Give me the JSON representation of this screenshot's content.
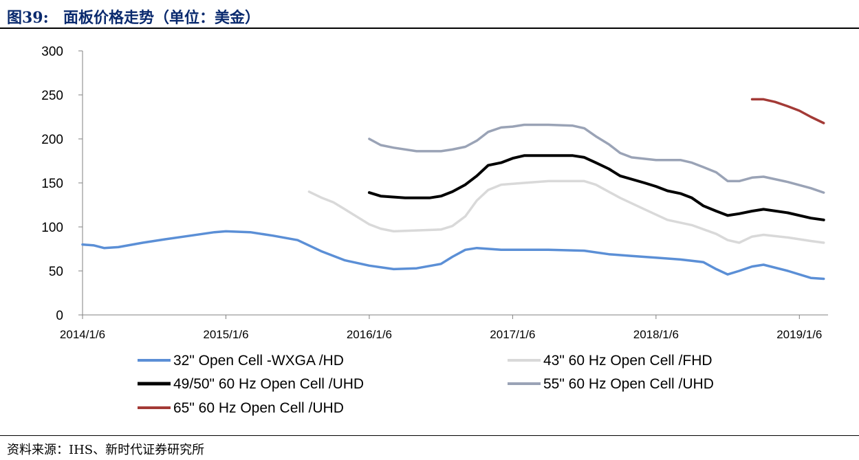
{
  "header": {
    "figure_label": "图39:",
    "title": "面板价格走势（单位：美金）"
  },
  "footer": {
    "source": "资料来源：IHS、新时代证券研究所"
  },
  "chart_data": {
    "type": "line",
    "title": "面板价格走势（单位：美金）",
    "xlabel": "",
    "ylabel": "",
    "ylim": [
      0,
      300
    ],
    "yticks": [
      0,
      50,
      100,
      150,
      200,
      250,
      300
    ],
    "xlim": [
      2014.0,
      2019.2
    ],
    "xticks": [
      {
        "x": 2014.0,
        "label": "2014/1/6"
      },
      {
        "x": 2015.0,
        "label": "2015/1/6"
      },
      {
        "x": 2016.0,
        "label": "2016/1/6"
      },
      {
        "x": 2017.0,
        "label": "2017/1/6"
      },
      {
        "x": 2018.0,
        "label": "2018/1/6"
      },
      {
        "x": 2019.0,
        "label": "2019/1/6"
      }
    ],
    "grid": false,
    "legend_position": "bottom",
    "series": [
      {
        "name": "32\" Open Cell -WXGA /HD",
        "color": "#5b8fd6",
        "points": [
          [
            2014.0,
            80
          ],
          [
            2014.08,
            79
          ],
          [
            2014.15,
            76
          ],
          [
            2014.25,
            77
          ],
          [
            2014.42,
            82
          ],
          [
            2014.58,
            86
          ],
          [
            2014.75,
            90
          ],
          [
            2014.92,
            94
          ],
          [
            2015.0,
            95
          ],
          [
            2015.17,
            94
          ],
          [
            2015.33,
            90
          ],
          [
            2015.5,
            85
          ],
          [
            2015.67,
            72
          ],
          [
            2015.83,
            62
          ],
          [
            2016.0,
            56
          ],
          [
            2016.17,
            52
          ],
          [
            2016.33,
            53
          ],
          [
            2016.5,
            58
          ],
          [
            2016.58,
            66
          ],
          [
            2016.67,
            74
          ],
          [
            2016.75,
            76
          ],
          [
            2016.92,
            74
          ],
          [
            2017.08,
            74
          ],
          [
            2017.25,
            74
          ],
          [
            2017.5,
            73
          ],
          [
            2017.67,
            69
          ],
          [
            2017.83,
            67
          ],
          [
            2018.0,
            65
          ],
          [
            2018.17,
            63
          ],
          [
            2018.33,
            60
          ],
          [
            2018.42,
            52
          ],
          [
            2018.5,
            46
          ],
          [
            2018.58,
            50
          ],
          [
            2018.67,
            55
          ],
          [
            2018.75,
            57
          ],
          [
            2018.92,
            50
          ],
          [
            2019.08,
            42
          ],
          [
            2019.17,
            41
          ]
        ]
      },
      {
        "name": "43\" 60 Hz Open Cell /FHD",
        "color": "#d9d9d9",
        "points": [
          [
            2015.58,
            140
          ],
          [
            2015.67,
            133
          ],
          [
            2015.75,
            128
          ],
          [
            2015.83,
            120
          ],
          [
            2016.0,
            103
          ],
          [
            2016.08,
            98
          ],
          [
            2016.17,
            95
          ],
          [
            2016.33,
            96
          ],
          [
            2016.5,
            97
          ],
          [
            2016.58,
            101
          ],
          [
            2016.67,
            112
          ],
          [
            2016.75,
            130
          ],
          [
            2016.83,
            142
          ],
          [
            2016.92,
            148
          ],
          [
            2017.08,
            150
          ],
          [
            2017.25,
            152
          ],
          [
            2017.5,
            152
          ],
          [
            2017.58,
            148
          ],
          [
            2017.75,
            133
          ],
          [
            2017.92,
            120
          ],
          [
            2018.08,
            108
          ],
          [
            2018.25,
            102
          ],
          [
            2018.42,
            92
          ],
          [
            2018.5,
            85
          ],
          [
            2018.58,
            82
          ],
          [
            2018.67,
            89
          ],
          [
            2018.75,
            91
          ],
          [
            2018.92,
            88
          ],
          [
            2019.08,
            84
          ],
          [
            2019.17,
            82
          ]
        ]
      },
      {
        "name": "49/50\" 60 Hz Open Cell /UHD",
        "color": "#000000",
        "points": [
          [
            2016.0,
            139
          ],
          [
            2016.08,
            135
          ],
          [
            2016.25,
            133
          ],
          [
            2016.42,
            133
          ],
          [
            2016.5,
            135
          ],
          [
            2016.58,
            140
          ],
          [
            2016.67,
            148
          ],
          [
            2016.75,
            158
          ],
          [
            2016.83,
            170
          ],
          [
            2016.92,
            173
          ],
          [
            2017.0,
            178
          ],
          [
            2017.08,
            181
          ],
          [
            2017.25,
            181
          ],
          [
            2017.42,
            181
          ],
          [
            2017.5,
            179
          ],
          [
            2017.58,
            173
          ],
          [
            2017.67,
            166
          ],
          [
            2017.75,
            158
          ],
          [
            2017.92,
            150
          ],
          [
            2018.0,
            146
          ],
          [
            2018.08,
            141
          ],
          [
            2018.17,
            138
          ],
          [
            2018.25,
            133
          ],
          [
            2018.33,
            124
          ],
          [
            2018.42,
            118
          ],
          [
            2018.5,
            113
          ],
          [
            2018.58,
            115
          ],
          [
            2018.67,
            118
          ],
          [
            2018.75,
            120
          ],
          [
            2018.92,
            116
          ],
          [
            2019.08,
            110
          ],
          [
            2019.17,
            108
          ]
        ]
      },
      {
        "name": "55\" 60 Hz Open Cell /UHD",
        "color": "#9aa3b6",
        "points": [
          [
            2016.0,
            200
          ],
          [
            2016.08,
            193
          ],
          [
            2016.17,
            190
          ],
          [
            2016.33,
            186
          ],
          [
            2016.5,
            186
          ],
          [
            2016.58,
            188
          ],
          [
            2016.67,
            191
          ],
          [
            2016.75,
            198
          ],
          [
            2016.83,
            208
          ],
          [
            2016.92,
            213
          ],
          [
            2017.0,
            214
          ],
          [
            2017.08,
            216
          ],
          [
            2017.25,
            216
          ],
          [
            2017.42,
            215
          ],
          [
            2017.5,
            212
          ],
          [
            2017.58,
            203
          ],
          [
            2017.67,
            194
          ],
          [
            2017.75,
            184
          ],
          [
            2017.83,
            179
          ],
          [
            2018.0,
            176
          ],
          [
            2018.17,
            176
          ],
          [
            2018.25,
            173
          ],
          [
            2018.33,
            168
          ],
          [
            2018.42,
            162
          ],
          [
            2018.5,
            152
          ],
          [
            2018.58,
            152
          ],
          [
            2018.67,
            156
          ],
          [
            2018.75,
            157
          ],
          [
            2018.92,
            151
          ],
          [
            2019.08,
            144
          ],
          [
            2019.17,
            139
          ]
        ]
      },
      {
        "name": "65\" 60 Hz Open Cell /UHD",
        "color": "#a33a36",
        "points": [
          [
            2018.67,
            245
          ],
          [
            2018.75,
            245
          ],
          [
            2018.83,
            242
          ],
          [
            2018.92,
            237
          ],
          [
            2019.0,
            232
          ],
          [
            2019.08,
            225
          ],
          [
            2019.17,
            218
          ]
        ]
      }
    ]
  }
}
